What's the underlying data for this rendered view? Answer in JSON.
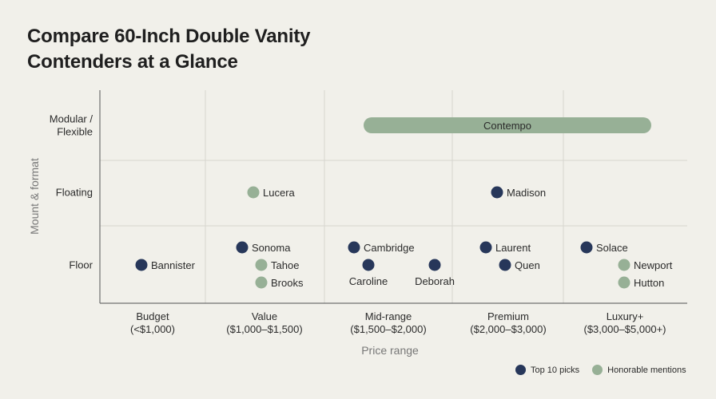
{
  "title_lines": [
    "Compare 60-Inch Double Vanity",
    "Contenders at a Glance"
  ],
  "colors": {
    "top10": "#27375a",
    "honorable": "#97b096",
    "range_bar": "#97b096",
    "grid": "#d6d6cf",
    "axis": "#6f6f6f"
  },
  "legend": {
    "top10": "Top 10 picks",
    "honorable": "Honorable mentions"
  },
  "chart_data": {
    "type": "scatter",
    "xlabel": "Price range",
    "ylabel": "Mount & format",
    "x_categories": [
      [
        "Budget",
        "(<$1,000)"
      ],
      [
        "Value",
        "($1,000–$1,500)"
      ],
      [
        "Mid-range",
        "($1,500–$2,000)"
      ],
      [
        "Premium",
        "($2,000–$3,000)"
      ],
      [
        "Luxury+",
        "($3,000–$5,000+)"
      ]
    ],
    "y_categories": [
      [
        "Modular /",
        "Flexible"
      ],
      [
        "Floating"
      ],
      [
        "Floor"
      ]
    ],
    "range_bars": [
      {
        "name": "Contempo",
        "group": "honorable",
        "y": "Modular / Flexible",
        "x_from": "Mid-range",
        "x_to": "Luxury+"
      }
    ],
    "points": [
      {
        "name": "Bannister",
        "group": "top10",
        "x": "Budget",
        "y": "Floor"
      },
      {
        "name": "Lucera",
        "group": "honorable",
        "x": "Value",
        "y": "Floating"
      },
      {
        "name": "Sonoma",
        "group": "top10",
        "x": "Value",
        "y": "Floor"
      },
      {
        "name": "Tahoe",
        "group": "honorable",
        "x": "Value",
        "y": "Floor"
      },
      {
        "name": "Brooks",
        "group": "honorable",
        "x": "Value",
        "y": "Floor"
      },
      {
        "name": "Cambridge",
        "group": "top10",
        "x": "Mid-range",
        "y": "Floor"
      },
      {
        "name": "Caroline",
        "group": "top10",
        "x": "Mid-range",
        "y": "Floor"
      },
      {
        "name": "Deborah",
        "group": "top10",
        "x": "Mid-range",
        "y": "Floor"
      },
      {
        "name": "Madison",
        "group": "top10",
        "x": "Premium",
        "y": "Floating"
      },
      {
        "name": "Laurent",
        "group": "top10",
        "x": "Premium",
        "y": "Floor"
      },
      {
        "name": "Quen",
        "group": "top10",
        "x": "Premium",
        "y": "Floor"
      },
      {
        "name": "Solace",
        "group": "top10",
        "x": "Luxury+",
        "y": "Floor"
      },
      {
        "name": "Newport",
        "group": "honorable",
        "x": "Luxury+",
        "y": "Floor"
      },
      {
        "name": "Hutton",
        "group": "honorable",
        "x": "Luxury+",
        "y": "Floor"
      }
    ]
  }
}
